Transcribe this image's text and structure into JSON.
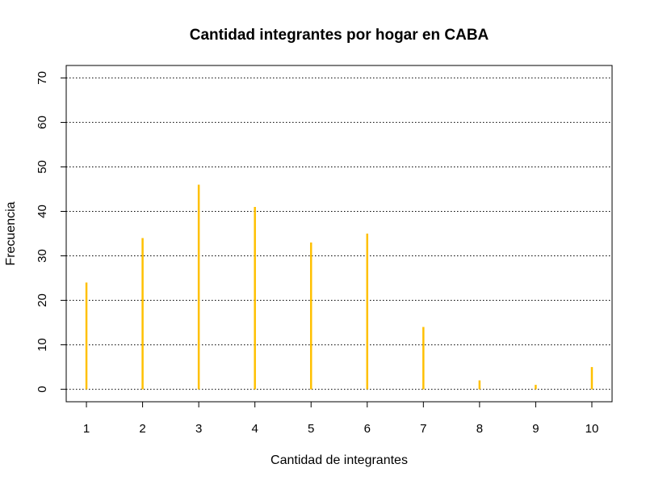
{
  "chart_data": {
    "type": "bar",
    "title": "Cantidad integrantes por hogar en CABA",
    "xlabel": "Cantidad de integrantes",
    "ylabel": "Frecuencia",
    "categories": [
      "1",
      "2",
      "3",
      "4",
      "5",
      "6",
      "7",
      "8",
      "9",
      "10"
    ],
    "x": [
      1,
      2,
      3,
      4,
      5,
      6,
      7,
      8,
      9,
      10
    ],
    "values": [
      24,
      34,
      46,
      41,
      33,
      35,
      14,
      2,
      1,
      5
    ],
    "xlim": [
      0.64,
      10.36
    ],
    "ylim": [
      -2.8,
      72.8
    ],
    "yticks": [
      0,
      10,
      20,
      30,
      40,
      50,
      60,
      70
    ],
    "grid": "horizontal dotted",
    "bar_color": "#FFC000",
    "grid_color": "#000000"
  }
}
